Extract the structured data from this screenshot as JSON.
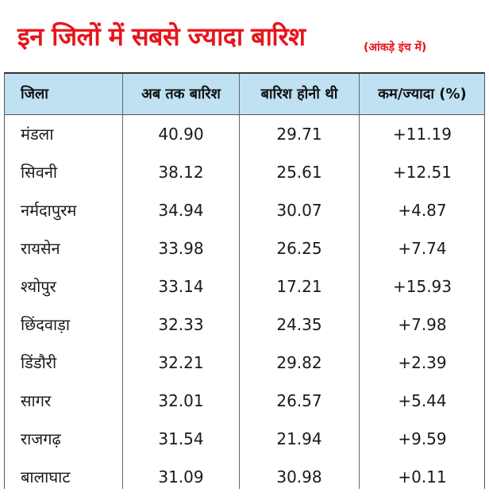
{
  "title": "इन जिलों में सबसे ज्यादा बारिश",
  "subtitle": "(आंकड़े इंच में)",
  "colors": {
    "title": "#e8141b",
    "header_bg": "#bfe1f2"
  },
  "chart_data": {
    "type": "table",
    "title": "इन जिलों में सबसे ज्यादा बारिश",
    "subtitle": "(आंकड़े इंच में)",
    "columns": [
      "जिला",
      "अब तक बारिश",
      "बारिश होनी थी",
      "कम/ज्यादा (%)"
    ],
    "rows": [
      [
        "मंडला",
        "40.90",
        "29.71",
        "+11.19"
      ],
      [
        "सिवनी",
        "38.12",
        "25.61",
        "+12.51"
      ],
      [
        "नर्मदापुरम",
        "34.94",
        "30.07",
        "+4.87"
      ],
      [
        "रायसेन",
        "33.98",
        "26.25",
        "+7.74"
      ],
      [
        "श्योपुर",
        "33.14",
        "17.21",
        "+15.93"
      ],
      [
        "छिंदवाड़ा",
        "32.33",
        "24.35",
        "+7.98"
      ],
      [
        "डिंडौरी",
        "32.21",
        "29.82",
        "+2.39"
      ],
      [
        "सागर",
        "32.01",
        "26.57",
        "+5.44"
      ],
      [
        "राजगढ़",
        "31.54",
        "21.94",
        "+9.59"
      ],
      [
        "बालाघाट",
        "31.09",
        "30.98",
        "+0.11"
      ]
    ]
  }
}
